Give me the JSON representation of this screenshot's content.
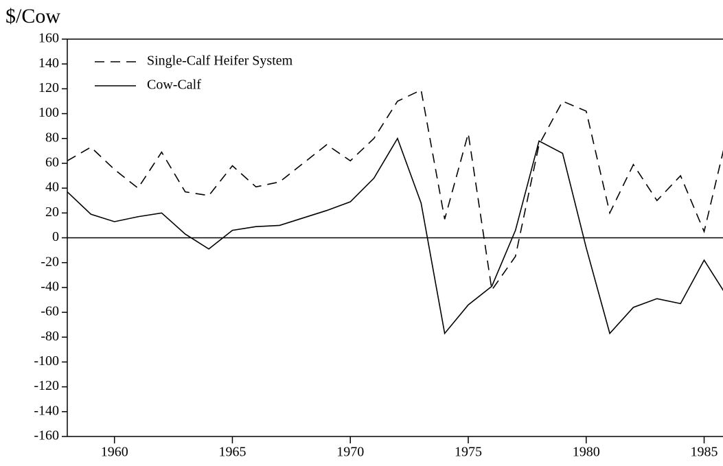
{
  "chart_data": {
    "type": "line",
    "ylabel": "$/Cow",
    "x": [
      1958,
      1959,
      1960,
      1961,
      1962,
      1963,
      1964,
      1965,
      1966,
      1967,
      1968,
      1969,
      1970,
      1971,
      1972,
      1973,
      1974,
      1975,
      1976,
      1977,
      1978,
      1979,
      1980,
      1981,
      1982,
      1983,
      1984,
      1985,
      1986
    ],
    "series": [
      {
        "name": "Single-Calf Heifer System",
        "color": "#000000",
        "dash": "dashed",
        "values": [
          62,
          73,
          55,
          40,
          69,
          37,
          34,
          58,
          41,
          45,
          60,
          75,
          62,
          80,
          110,
          119,
          15,
          84,
          -42,
          -15,
          75,
          110,
          102,
          20,
          59,
          30,
          50,
          5,
          85
        ]
      },
      {
        "name": "Cow-Calf",
        "color": "#000000",
        "dash": "solid",
        "values": [
          37,
          19,
          13,
          17,
          20,
          3,
          -9,
          6,
          9,
          10,
          16,
          22,
          29,
          48,
          80,
          28,
          -77,
          -54,
          -39,
          6,
          78,
          68,
          -8,
          -77,
          -56,
          -49,
          -53,
          -18,
          -48
        ]
      }
    ],
    "xlim": [
      1958,
      1985.8
    ],
    "xticks": [
      1960,
      1965,
      1970,
      1975,
      1980,
      1985
    ],
    "ylim": [
      -160,
      160
    ],
    "yticks": [
      -160,
      -140,
      -120,
      -100,
      -80,
      -60,
      -40,
      -20,
      0,
      20,
      40,
      60,
      80,
      100,
      120,
      140,
      160
    ],
    "zero_line": true,
    "legend": "upper left"
  }
}
